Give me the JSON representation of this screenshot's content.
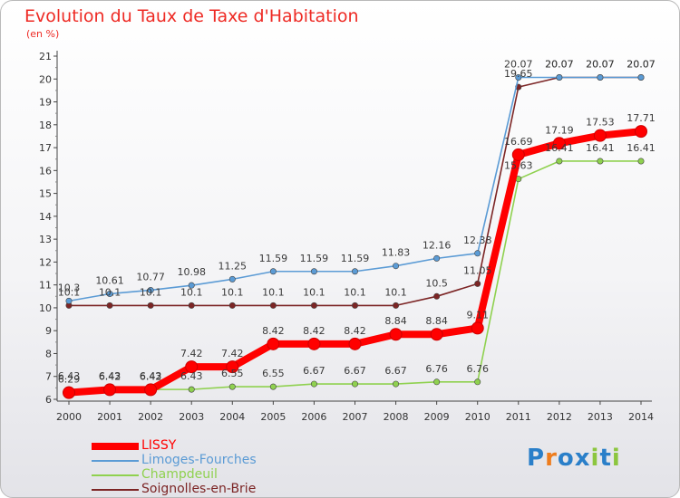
{
  "title": "Evolution du Taux de Taxe d'Habitation",
  "subtitle": "(en %)",
  "logo": {
    "text": "Proxiti",
    "letters": [
      "P",
      "r",
      "o",
      "x",
      "i",
      "t",
      "i"
    ],
    "colors": [
      "#2a7fc9",
      "#ee7d1e",
      "#2a7fc9",
      "#2a7fc9",
      "#8cc63f",
      "#2a7fc9",
      "#8cc63f"
    ]
  },
  "chart_data": {
    "type": "line",
    "x": [
      "2000",
      "2001",
      "2002",
      "2003",
      "2004",
      "2005",
      "2006",
      "2007",
      "2008",
      "2009",
      "2010",
      "2011",
      "2012",
      "2013",
      "2014"
    ],
    "yticks": [
      "6",
      "7",
      "8",
      "9",
      "10",
      "11",
      "12",
      "13",
      "14",
      "15",
      "16",
      "17",
      "18",
      "19",
      "20",
      "21"
    ],
    "ylim": [
      6,
      21
    ],
    "grid": false,
    "legend_position": "bottom-left",
    "series": [
      {
        "name": "Soignolles-en-Brie",
        "color": "#7c2525",
        "values": [
          10.1,
          10.1,
          10.1,
          10.1,
          10.1,
          10.1,
          10.1,
          10.1,
          10.1,
          10.5,
          11.05,
          19.65,
          20.07,
          20.07,
          20.07
        ],
        "labels": [
          "10.1",
          "10.1",
          "10.1",
          "10.1",
          "10.1",
          "10.1",
          "10.1",
          "10.1",
          "10.1",
          "10.5",
          "11.05",
          "19.65",
          "20.07",
          "20.07",
          "20.07"
        ]
      },
      {
        "name": "Limoges-Fourches",
        "color": "#5b9bd5",
        "values": [
          10.3,
          10.61,
          10.77,
          10.98,
          11.25,
          11.59,
          11.59,
          11.59,
          11.83,
          12.16,
          12.38,
          20.07,
          20.07,
          20.07,
          20.07
        ],
        "labels": [
          "10.3",
          "10.61",
          "10.77",
          "10.98",
          "11.25",
          "11.59",
          "11.59",
          "11.59",
          "11.83",
          "12.16",
          "12.38",
          "20.07",
          "20.07",
          "20.07",
          "20.07"
        ]
      },
      {
        "name": "Champdeuil",
        "color": "#8fd14f",
        "values": [
          6.43,
          6.43,
          6.43,
          6.43,
          6.55,
          6.55,
          6.67,
          6.67,
          6.67,
          6.76,
          6.76,
          15.63,
          16.41,
          16.41,
          16.41
        ],
        "labels": [
          "6.43",
          "6.43",
          "6.43",
          "6.43",
          "6.55",
          "6.55",
          "6.67",
          "6.67",
          "6.67",
          "6.76",
          "6.76",
          "15.63",
          "16.41",
          "16.41",
          "16.41"
        ]
      },
      {
        "name": "LISSY",
        "color": "#ff0000",
        "values": [
          6.29,
          6.42,
          6.42,
          7.42,
          7.42,
          8.42,
          8.42,
          8.42,
          8.84,
          8.84,
          9.11,
          16.69,
          17.19,
          17.53,
          17.71
        ],
        "labels": [
          "6.29",
          "6.42",
          "6.42",
          "7.42",
          "7.42",
          "8.42",
          "8.42",
          "8.42",
          "8.84",
          "8.84",
          "9.11",
          "16.69",
          "17.19",
          "17.53",
          "17.71"
        ]
      }
    ],
    "legend_order": [
      "LISSY",
      "Limoges-Fourches",
      "Champdeuil",
      "Soignolles-en-Brie"
    ]
  }
}
